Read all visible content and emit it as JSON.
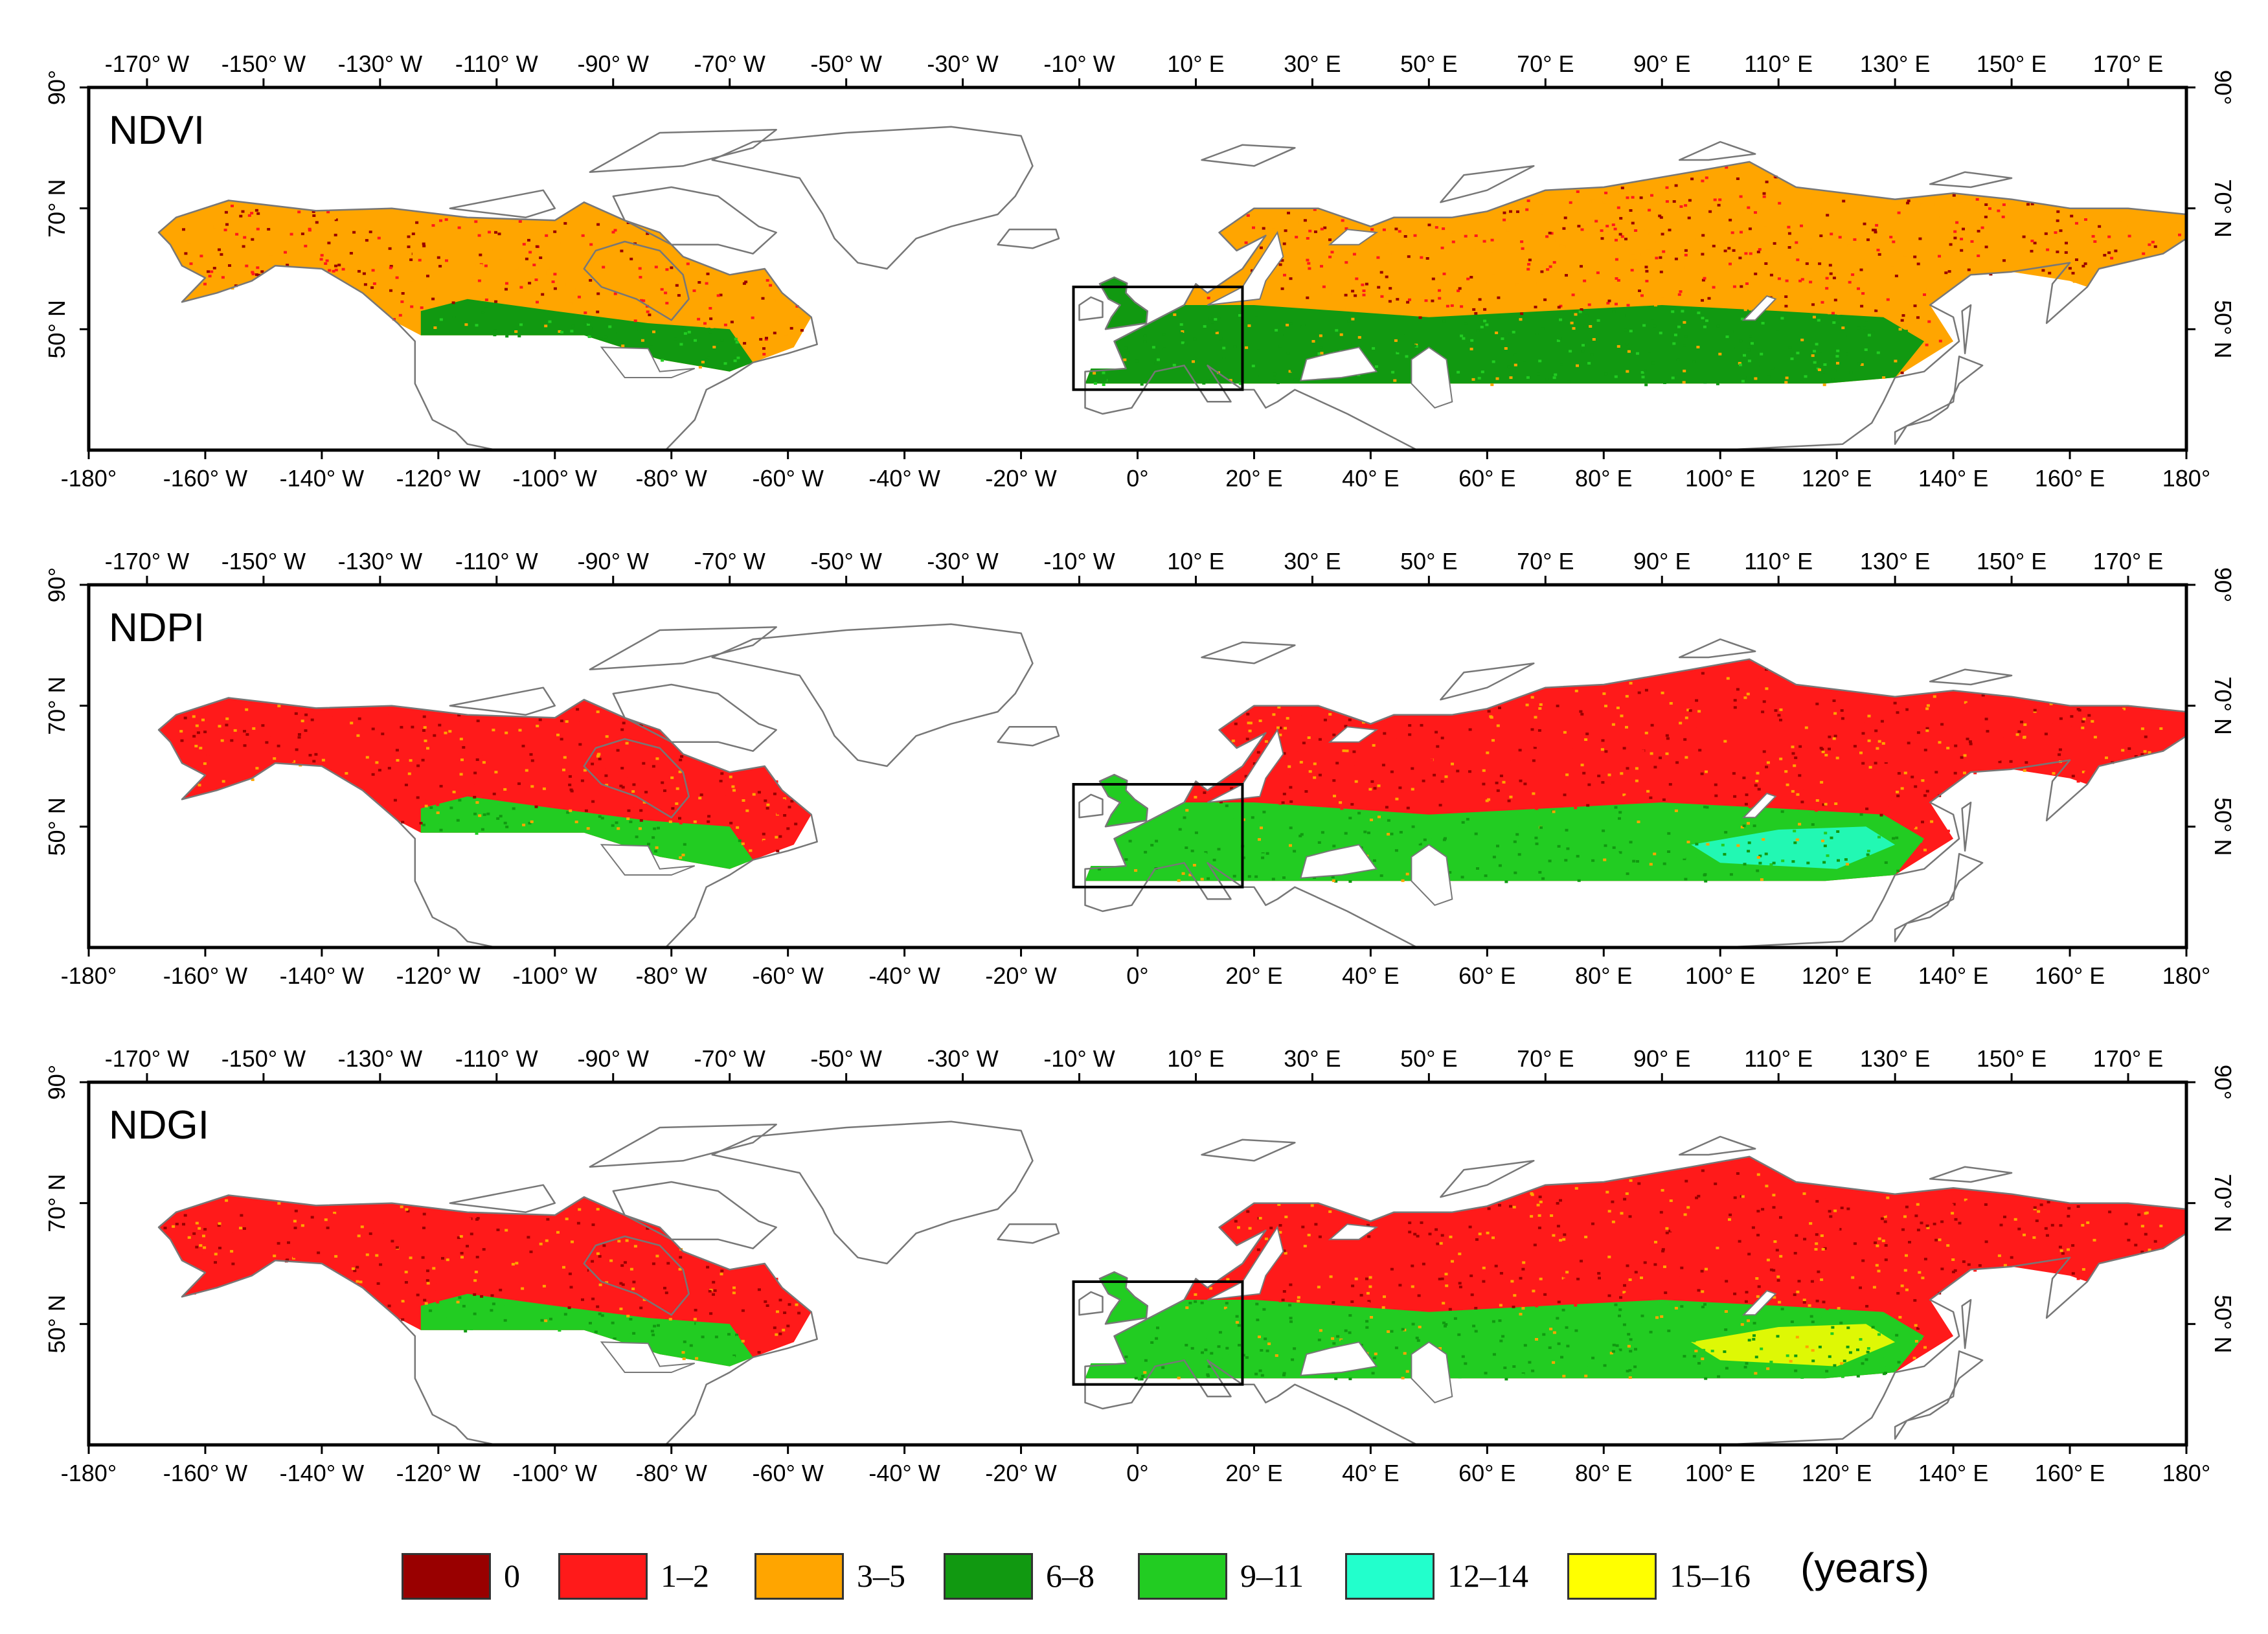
{
  "figure": {
    "lon_range": [
      -180,
      180
    ],
    "lat_range": [
      30,
      90
    ],
    "lat_ticks": [
      {
        "value": 90,
        "label": "90°"
      },
      {
        "value": 70,
        "label": "70° N"
      },
      {
        "value": 50,
        "label": "50° N"
      }
    ],
    "top_lon_ticks": [
      {
        "value": -170,
        "label": "-170° W"
      },
      {
        "value": -150,
        "label": "-150° W"
      },
      {
        "value": -130,
        "label": "-130° W"
      },
      {
        "value": -110,
        "label": "-110° W"
      },
      {
        "value": -90,
        "label": "-90° W"
      },
      {
        "value": -70,
        "label": "-70° W"
      },
      {
        "value": -50,
        "label": "-50° W"
      },
      {
        "value": -30,
        "label": "-30° W"
      },
      {
        "value": -10,
        "label": "-10° W"
      },
      {
        "value": 10,
        "label": "10° E"
      },
      {
        "value": 30,
        "label": "30° E"
      },
      {
        "value": 50,
        "label": "50° E"
      },
      {
        "value": 70,
        "label": "70° E"
      },
      {
        "value": 90,
        "label": "90° E"
      },
      {
        "value": 110,
        "label": "110° E"
      },
      {
        "value": 130,
        "label": "130° E"
      },
      {
        "value": 150,
        "label": "150° E"
      },
      {
        "value": 170,
        "label": "170° E"
      }
    ],
    "bottom_lon_ticks": [
      {
        "value": -180,
        "label": "-180°"
      },
      {
        "value": -160,
        "label": "-160° W"
      },
      {
        "value": -140,
        "label": "-140° W"
      },
      {
        "value": -120,
        "label": "-120° W"
      },
      {
        "value": -100,
        "label": "-100° W"
      },
      {
        "value": -80,
        "label": "-80° W"
      },
      {
        "value": -60,
        "label": "-60° W"
      },
      {
        "value": -40,
        "label": "-40° W"
      },
      {
        "value": -20,
        "label": "-20° W"
      },
      {
        "value": 0,
        "label": "0°"
      },
      {
        "value": 20,
        "label": "20° E"
      },
      {
        "value": 40,
        "label": "40° E"
      },
      {
        "value": 60,
        "label": "60° E"
      },
      {
        "value": 80,
        "label": "80° E"
      },
      {
        "value": 100,
        "label": "100° E"
      },
      {
        "value": 120,
        "label": "120° E"
      },
      {
        "value": 140,
        "label": "140° E"
      },
      {
        "value": 160,
        "label": "160° E"
      },
      {
        "value": 180,
        "label": "180°"
      }
    ],
    "inset_box": {
      "lon_min": -11,
      "lon_max": 18,
      "lat_min": 40,
      "lat_max": 57
    },
    "panels": [
      {
        "id": "ndvi",
        "label": "NDVI"
      },
      {
        "id": "ndpi",
        "label": "NDPI"
      },
      {
        "id": "ndgi",
        "label": "NDGI"
      }
    ],
    "colors": {
      "coastline": "#777777",
      "frame": "#000000"
    }
  },
  "legend": {
    "unit": "(years)",
    "classes": [
      {
        "label": "0",
        "color": "#990000"
      },
      {
        "label": "1–2",
        "color": "#ff1a1a"
      },
      {
        "label": "3–5",
        "color": "#ffa500"
      },
      {
        "label": "6–8",
        "color": "#119911"
      },
      {
        "label": "9–11",
        "color": "#22cc22"
      },
      {
        "label": "12–14",
        "color": "#22ffcc"
      },
      {
        "label": "15–16",
        "color": "#ffff00"
      }
    ]
  }
}
